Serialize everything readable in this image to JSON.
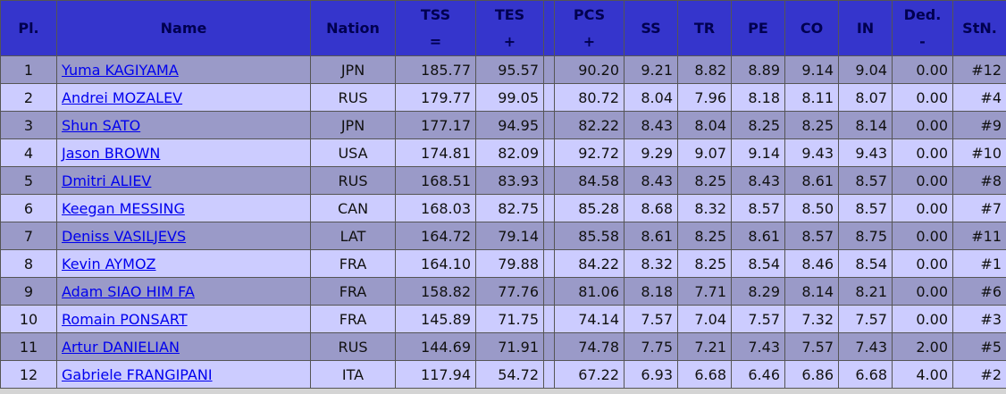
{
  "table": {
    "header": [
      {
        "label": "Pl."
      },
      {
        "label": "Name"
      },
      {
        "label": "Nation"
      },
      {
        "label": "TSS",
        "sub": "="
      },
      {
        "label": "TES",
        "sub": "+"
      },
      {
        "label": "PCS",
        "sub": "+"
      },
      {
        "label": "SS"
      },
      {
        "label": "TR"
      },
      {
        "label": "PE"
      },
      {
        "label": "CO"
      },
      {
        "label": "IN"
      },
      {
        "label": "Ded.",
        "sub": "-"
      },
      {
        "label": "StN."
      }
    ],
    "rows": [
      [
        "1",
        "Yuma KAGIYAMA",
        "JPN",
        "185.77",
        "95.57",
        "90.20",
        "9.21",
        "8.82",
        "8.89",
        "9.14",
        "9.04",
        "0.00",
        "#12"
      ],
      [
        "2",
        "Andrei MOZALEV",
        "RUS",
        "179.77",
        "99.05",
        "80.72",
        "8.04",
        "7.96",
        "8.18",
        "8.11",
        "8.07",
        "0.00",
        "#4"
      ],
      [
        "3",
        "Shun SATO",
        "JPN",
        "177.17",
        "94.95",
        "82.22",
        "8.43",
        "8.04",
        "8.25",
        "8.25",
        "8.14",
        "0.00",
        "#9"
      ],
      [
        "4",
        "Jason BROWN",
        "USA",
        "174.81",
        "82.09",
        "92.72",
        "9.29",
        "9.07",
        "9.14",
        "9.43",
        "9.43",
        "0.00",
        "#10"
      ],
      [
        "5",
        "Dmitri ALIEV",
        "RUS",
        "168.51",
        "83.93",
        "84.58",
        "8.43",
        "8.25",
        "8.43",
        "8.61",
        "8.57",
        "0.00",
        "#8"
      ],
      [
        "6",
        "Keegan MESSING",
        "CAN",
        "168.03",
        "82.75",
        "85.28",
        "8.68",
        "8.32",
        "8.57",
        "8.50",
        "8.57",
        "0.00",
        "#7"
      ],
      [
        "7",
        "Deniss VASILJEVS",
        "LAT",
        "164.72",
        "79.14",
        "85.58",
        "8.61",
        "8.25",
        "8.61",
        "8.57",
        "8.75",
        "0.00",
        "#11"
      ],
      [
        "8",
        "Kevin AYMOZ",
        "FRA",
        "164.10",
        "79.88",
        "84.22",
        "8.32",
        "8.25",
        "8.54",
        "8.46",
        "8.54",
        "0.00",
        "#1"
      ],
      [
        "9",
        "Adam SIAO HIM FA",
        "FRA",
        "158.82",
        "77.76",
        "81.06",
        "8.18",
        "7.71",
        "8.29",
        "8.14",
        "8.21",
        "0.00",
        "#6"
      ],
      [
        "10",
        "Romain PONSART",
        "FRA",
        "145.89",
        "71.75",
        "74.14",
        "7.57",
        "7.04",
        "7.57",
        "7.32",
        "7.57",
        "0.00",
        "#3"
      ],
      [
        "11",
        "Artur DANIELIAN",
        "RUS",
        "144.69",
        "71.91",
        "74.78",
        "7.75",
        "7.21",
        "7.43",
        "7.57",
        "7.43",
        "2.00",
        "#5"
      ],
      [
        "12",
        "Gabriele FRANGIPANI",
        "ITA",
        "117.94",
        "54.72",
        "67.22",
        "6.93",
        "6.68",
        "6.46",
        "6.86",
        "6.68",
        "4.00",
        "#2"
      ]
    ]
  }
}
